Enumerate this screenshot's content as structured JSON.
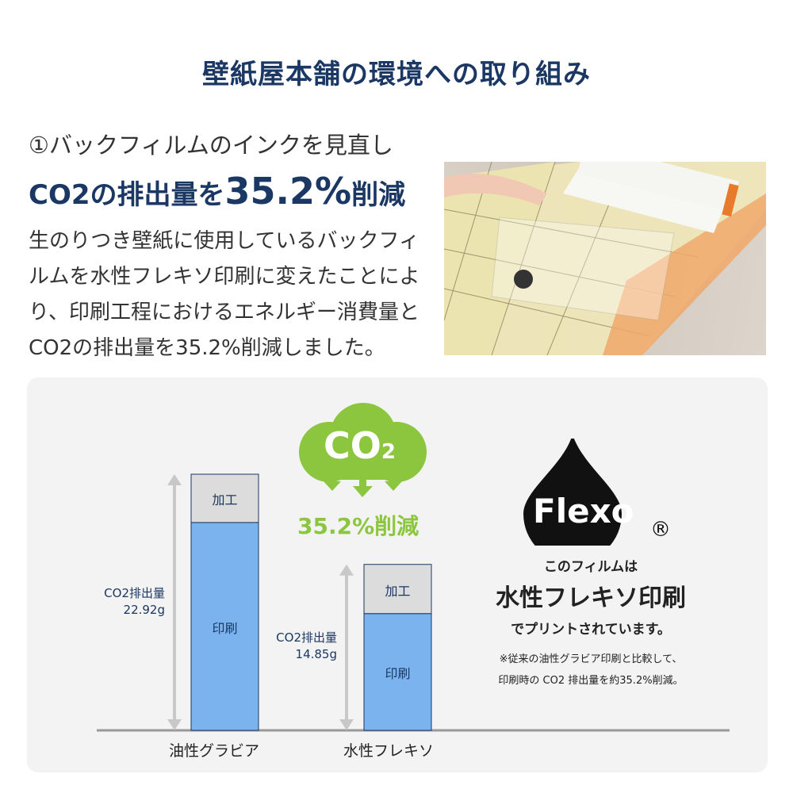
{
  "title": "壁紙屋本舗の環境への取り組み",
  "section": {
    "subtitle": "①バックフィルムのインクを見直し",
    "headline_pre": "CO2の排出量を",
    "headline_value": "35.2%",
    "headline_post": "削減",
    "body": "生のりつき壁紙に使用しているバックフィルムを水性フレキソ印刷に変えたことにより、印刷工程におけるエネルギー消費量とCO2の排出量を35.2%削減しました。"
  },
  "co2_badge": {
    "label": "CO",
    "subscript": "2",
    "reduction": "35.2%削減",
    "color": "#8cc63f"
  },
  "flexo": {
    "logo": "Flexo",
    "registered": "®",
    "line1": "このフィルムは",
    "line2": "水性フレキソ印刷",
    "line3": "でプリントされています。",
    "note1": "※従来の油性グラビア印刷と比較して、",
    "note2": "印刷時の CO2 排出量を約35.2%削減。"
  },
  "chart_data": {
    "type": "bar",
    "stacked": true,
    "categories": [
      "油性グラビア",
      "水性フレキソ"
    ],
    "totals": [
      22.92,
      14.85
    ],
    "total_labels": [
      {
        "line1": "CO2排出量",
        "line2": "22.92g"
      },
      {
        "line1": "CO2排出量",
        "line2": "14.85g"
      }
    ],
    "series": [
      {
        "name": "印刷",
        "values": [
          18.6,
          10.45
        ],
        "color": "#7ab3ee"
      },
      {
        "name": "加工",
        "values": [
          4.32,
          4.4
        ],
        "color": "#dcdcdc"
      }
    ],
    "ylim": [
      0,
      22.92
    ],
    "grid": false
  }
}
